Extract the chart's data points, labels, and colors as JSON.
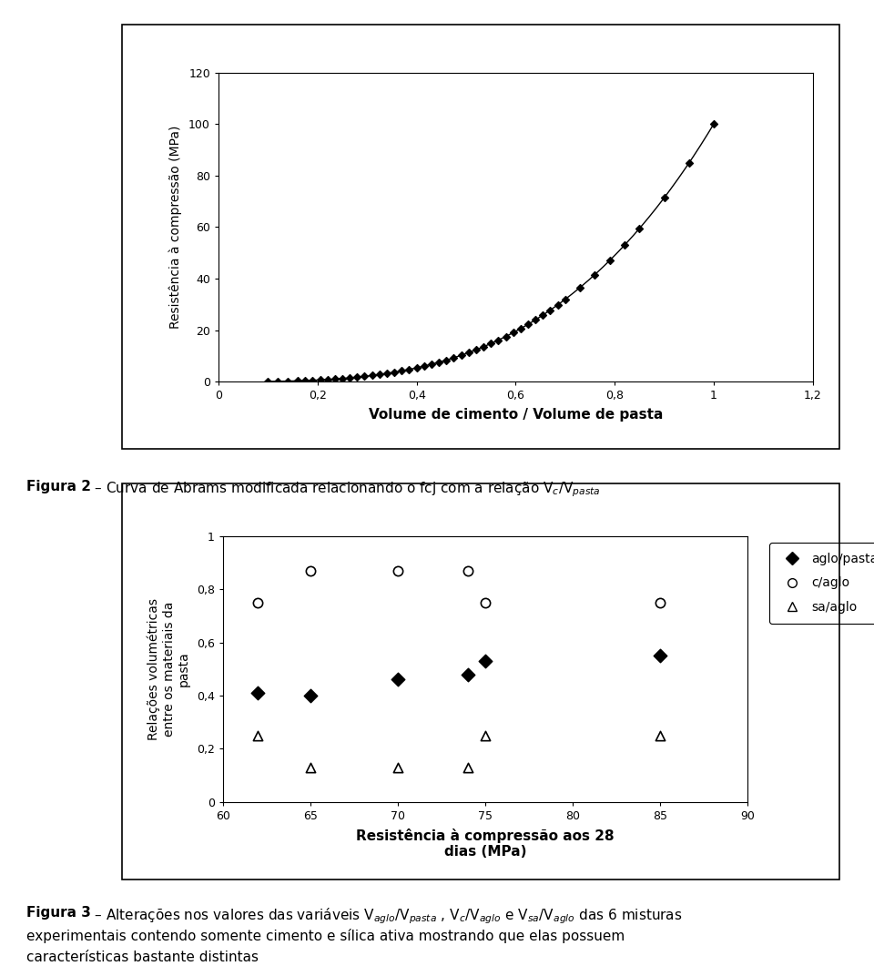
{
  "fig1": {
    "xlabel": "Volume de cimento / Volume de pasta",
    "ylabel": "Resistência à compressão (MPa)",
    "xlim": [
      0,
      1.2
    ],
    "ylim": [
      0,
      120
    ],
    "xticks": [
      0,
      0.2,
      0.4,
      0.6,
      0.8,
      1.0,
      1.2
    ],
    "xticklabels": [
      "0",
      "0,2",
      "0,4",
      "0,6",
      "0,8",
      "1",
      "1,2"
    ],
    "yticks": [
      0,
      20,
      40,
      60,
      80,
      100,
      120
    ],
    "yticklabels": [
      "0",
      "20",
      "40",
      "60",
      "80",
      "100",
      "120"
    ]
  },
  "fig2": {
    "xlabel_line1": "Resistência à compressão aos 28",
    "xlabel_line2": "dias (MPa)",
    "ylabel": "Relações volumétricas\nentre os materiais da\npasta",
    "xlim": [
      60,
      90
    ],
    "ylim": [
      0,
      1.0
    ],
    "xticks": [
      60,
      65,
      70,
      75,
      80,
      85,
      90
    ],
    "xticklabels": [
      "60",
      "65",
      "70",
      "75",
      "80",
      "85",
      "90"
    ],
    "yticks": [
      0,
      0.2,
      0.4,
      0.6,
      0.8,
      1.0
    ],
    "yticklabels": [
      "0",
      "0,2",
      "0,4",
      "0,6",
      "0,8",
      "1"
    ],
    "aglo_pasta_x": [
      62,
      65,
      70,
      74,
      75,
      85
    ],
    "aglo_pasta_y": [
      0.41,
      0.4,
      0.46,
      0.48,
      0.53,
      0.55
    ],
    "c_aglo_x": [
      62,
      65,
      70,
      74,
      75,
      85
    ],
    "c_aglo_y": [
      0.75,
      0.87,
      0.87,
      0.87,
      0.75,
      0.75
    ],
    "sa_aglo_x": [
      62,
      65,
      70,
      74,
      75,
      85
    ],
    "sa_aglo_y": [
      0.25,
      0.13,
      0.13,
      0.13,
      0.25,
      0.25
    ]
  },
  "curve_x": [
    0.1,
    0.12,
    0.14,
    0.16,
    0.175,
    0.19,
    0.205,
    0.22,
    0.235,
    0.25,
    0.265,
    0.28,
    0.295,
    0.31,
    0.325,
    0.34,
    0.355,
    0.37,
    0.385,
    0.4,
    0.415,
    0.43,
    0.445,
    0.46,
    0.475,
    0.49,
    0.505,
    0.52,
    0.535,
    0.55,
    0.565,
    0.58,
    0.595,
    0.61,
    0.625,
    0.64,
    0.655,
    0.67,
    0.685,
    0.7,
    0.73,
    0.76,
    0.79,
    0.82,
    0.85,
    0.9,
    0.95,
    1.0
  ],
  "background_color": "#ffffff",
  "font_size_axis": 10,
  "font_size_tick": 9,
  "font_size_caption": 11,
  "font_size_caption_bold": 11
}
